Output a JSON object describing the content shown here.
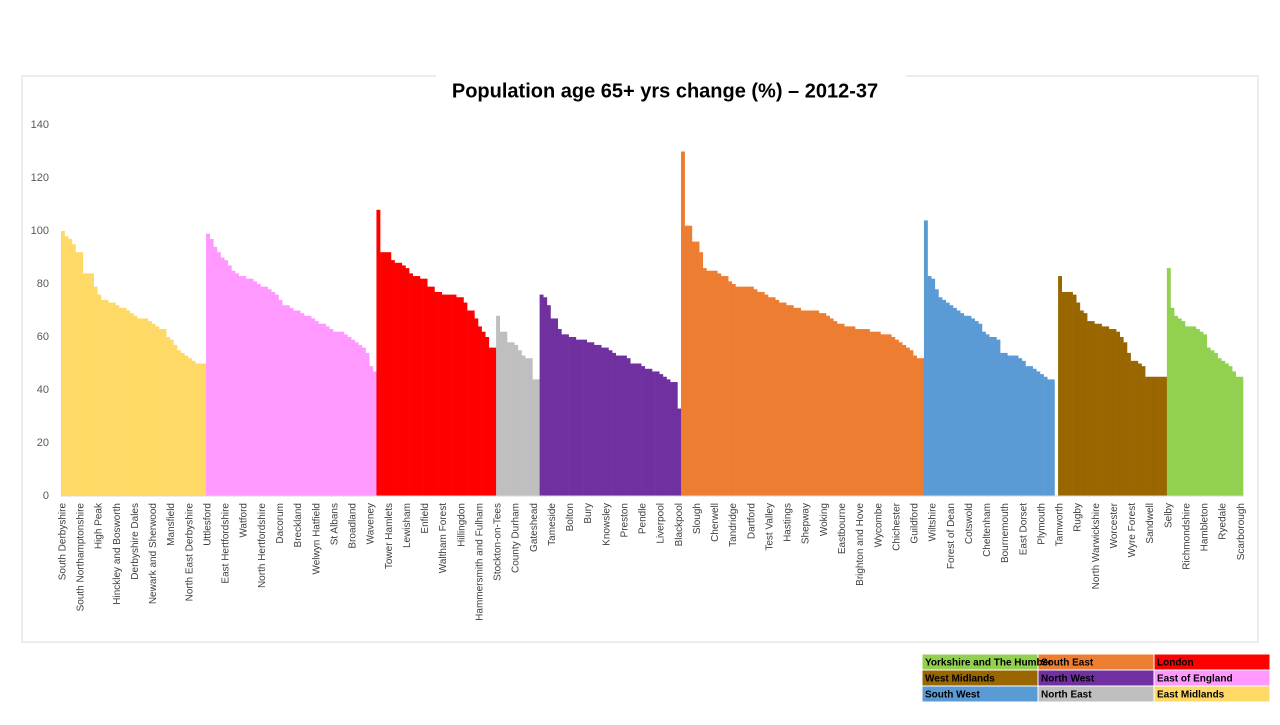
{
  "chart_data": {
    "type": "bar",
    "title": "Population age 65+ yrs change (%) – 2012-37",
    "ylim": [
      0,
      140
    ],
    "yticks": [
      0,
      20,
      40,
      60,
      80,
      100,
      120,
      140
    ],
    "groups": [
      {
        "name": "East Midlands",
        "color": "#FFD966",
        "categories": [
          "South Derbyshire",
          null,
          null,
          null,
          null,
          "South Northamptonshire",
          null,
          null,
          null,
          null,
          "High Peak",
          null,
          null,
          null,
          null,
          "Hinckley and Bosworth",
          null,
          null,
          null,
          null,
          "Derbyshire Dales",
          null,
          null,
          null,
          null,
          "Newark and Sherwood",
          null,
          null,
          null,
          null,
          "Mansfield",
          null,
          null,
          null,
          null,
          "North East Derbyshire",
          null,
          null,
          null,
          null
        ],
        "values": [
          100,
          98,
          97,
          95,
          92,
          92,
          84,
          84,
          84,
          79,
          76,
          74,
          74,
          73,
          73,
          72,
          71,
          71,
          70,
          69,
          68,
          67,
          67,
          67,
          66,
          65,
          64,
          63,
          63,
          60,
          59,
          57,
          55,
          54,
          53,
          52,
          51,
          50,
          50,
          50
        ]
      },
      {
        "name": "East of England",
        "color": "#FF99FF",
        "categories": [
          "Uttlesford",
          null,
          null,
          null,
          null,
          "East Hertfordshire",
          null,
          null,
          null,
          null,
          "Watford",
          null,
          null,
          null,
          null,
          "North Hertfordshire",
          null,
          null,
          null,
          null,
          "Dacorum",
          null,
          null,
          null,
          null,
          "Breckland",
          null,
          null,
          null,
          null,
          "Welwyn Hatfield",
          null,
          null,
          null,
          null,
          "St Albans",
          null,
          null,
          null,
          null,
          "Broadland",
          null,
          null,
          null,
          null,
          "Waveney",
          null
        ],
        "values": [
          99,
          97,
          94,
          92,
          90,
          89,
          87,
          85,
          84,
          83,
          83,
          82,
          82,
          81,
          80,
          79,
          79,
          78,
          77,
          76,
          74,
          72,
          72,
          71,
          70,
          70,
          69,
          68,
          68,
          67,
          66,
          65,
          65,
          64,
          63,
          62,
          62,
          62,
          61,
          60,
          59,
          58,
          57,
          56,
          54,
          49,
          47
        ]
      },
      {
        "name": "London",
        "color": "#FF0000",
        "categories": [
          null,
          null,
          null,
          "Tower Hamlets",
          null,
          null,
          null,
          null,
          "Lewisham",
          null,
          null,
          null,
          null,
          "Enfield",
          null,
          null,
          null,
          null,
          "Waltham Forest",
          null,
          null,
          null,
          null,
          "Hillingdon",
          null,
          null,
          null,
          null,
          "Hammersmith and Fulham",
          null,
          null,
          null,
          null
        ],
        "values": [
          108,
          92,
          92,
          92,
          89,
          88,
          88,
          87,
          86,
          84,
          83,
          83,
          82,
          82,
          79,
          79,
          77,
          77,
          76,
          76,
          76,
          76,
          75,
          75,
          73,
          70,
          70,
          67,
          64,
          62,
          60,
          56,
          56
        ]
      },
      {
        "name": "North East",
        "color": "#BFBFBF",
        "categories": [
          "Stockton-on-Tees",
          null,
          null,
          null,
          null,
          "County Durham",
          null,
          null,
          null,
          null,
          "Gateshead",
          null
        ],
        "values": [
          68,
          62,
          62,
          58,
          58,
          57,
          55,
          53,
          52,
          52,
          44,
          44
        ]
      },
      {
        "name": "North West",
        "color": "#7030A0",
        "categories": [
          null,
          null,
          null,
          "Tameside",
          null,
          null,
          null,
          null,
          "Bolton",
          null,
          null,
          null,
          null,
          "Bury",
          null,
          null,
          null,
          null,
          "Knowsley",
          null,
          null,
          null,
          null,
          "Preston",
          null,
          null,
          null,
          null,
          "Pendle",
          null,
          null,
          null,
          null,
          "Liverpool",
          null,
          null,
          null,
          null,
          "Blackpool"
        ],
        "values": [
          76,
          75,
          72,
          67,
          67,
          63,
          61,
          61,
          60,
          60,
          59,
          59,
          59,
          58,
          58,
          57,
          57,
          56,
          56,
          55,
          54,
          53,
          53,
          53,
          52,
          50,
          50,
          50,
          49,
          48,
          48,
          47,
          47,
          46,
          45,
          44,
          43,
          43,
          33
        ]
      },
      {
        "name": "South East",
        "color": "#ED7D31",
        "categories": [
          null,
          null,
          null,
          null,
          "Slough",
          null,
          null,
          null,
          null,
          "Cherwell",
          null,
          null,
          null,
          null,
          "Tandridge",
          null,
          null,
          null,
          null,
          "Dartford",
          null,
          null,
          null,
          null,
          "Test Valley",
          null,
          null,
          null,
          null,
          "Hastings",
          null,
          null,
          null,
          null,
          "Shepway",
          null,
          null,
          null,
          null,
          "Woking",
          null,
          null,
          null,
          null,
          "Eastbourne",
          null,
          null,
          null,
          null,
          "Brighton and Hove",
          null,
          null,
          null,
          null,
          "Wycombe",
          null,
          null,
          null,
          null,
          "Chichester",
          null,
          null,
          null,
          null,
          "Guildford",
          null,
          null
        ],
        "values": [
          130,
          102,
          102,
          96,
          96,
          92,
          86,
          85,
          85,
          85,
          84,
          83,
          83,
          81,
          80,
          79,
          79,
          79,
          79,
          79,
          78,
          77,
          77,
          76,
          75,
          75,
          74,
          73,
          73,
          72,
          72,
          71,
          71,
          70,
          70,
          70,
          70,
          70,
          69,
          69,
          68,
          67,
          66,
          65,
          65,
          64,
          64,
          64,
          63,
          63,
          63,
          63,
          62,
          62,
          62,
          61,
          61,
          61,
          60,
          59,
          58,
          57,
          56,
          55,
          53,
          52,
          52
        ]
      },
      {
        "name": "South West",
        "color": "#5B9BD5",
        "categories": [
          null,
          null,
          "Wiltshire",
          null,
          null,
          null,
          null,
          "Forest of Dean",
          null,
          null,
          null,
          null,
          "Cotswold",
          null,
          null,
          null,
          null,
          "Cheltenham",
          null,
          null,
          null,
          null,
          "Bournemouth",
          null,
          null,
          null,
          null,
          "East Dorset",
          null,
          null,
          null,
          null,
          "Plymouth",
          null,
          null,
          null,
          null
        ],
        "values": [
          104,
          83,
          82,
          78,
          75,
          74,
          73,
          72,
          71,
          70,
          69,
          68,
          68,
          67,
          66,
          65,
          62,
          61,
          60,
          60,
          59,
          54,
          54,
          53,
          53,
          53,
          52,
          51,
          49,
          49,
          48,
          47,
          46,
          45,
          44,
          44,
          null
        ]
      },
      {
        "name": "West Midlands",
        "color": "#996600",
        "categories": [
          "Tamworth",
          null,
          null,
          null,
          null,
          "Rugby",
          null,
          null,
          null,
          null,
          "North Warwickshire",
          null,
          null,
          null,
          null,
          "Worcester",
          null,
          null,
          null,
          null,
          "Wyre Forest",
          null,
          null,
          null,
          null,
          "Sandwell",
          null,
          null,
          null,
          null
        ],
        "values": [
          83,
          77,
          77,
          77,
          76,
          73,
          70,
          69,
          66,
          66,
          65,
          65,
          64,
          64,
          63,
          63,
          62,
          60,
          58,
          54,
          51,
          51,
          50,
          49,
          45,
          45,
          45,
          45,
          45,
          45
        ]
      },
      {
        "name": "Yorkshire and The Humber",
        "color": "#92D050",
        "categories": [
          "Selby",
          null,
          null,
          null,
          null,
          "Richmondshire",
          null,
          null,
          null,
          null,
          "Hambleton",
          null,
          null,
          null,
          null,
          "Ryedale",
          null,
          null,
          null,
          null,
          "Scarborough"
        ],
        "values": [
          86,
          71,
          68,
          67,
          66,
          64,
          64,
          64,
          63,
          62,
          61,
          56,
          55,
          54,
          52,
          51,
          50,
          49,
          47,
          45,
          45
        ]
      }
    ]
  }
}
